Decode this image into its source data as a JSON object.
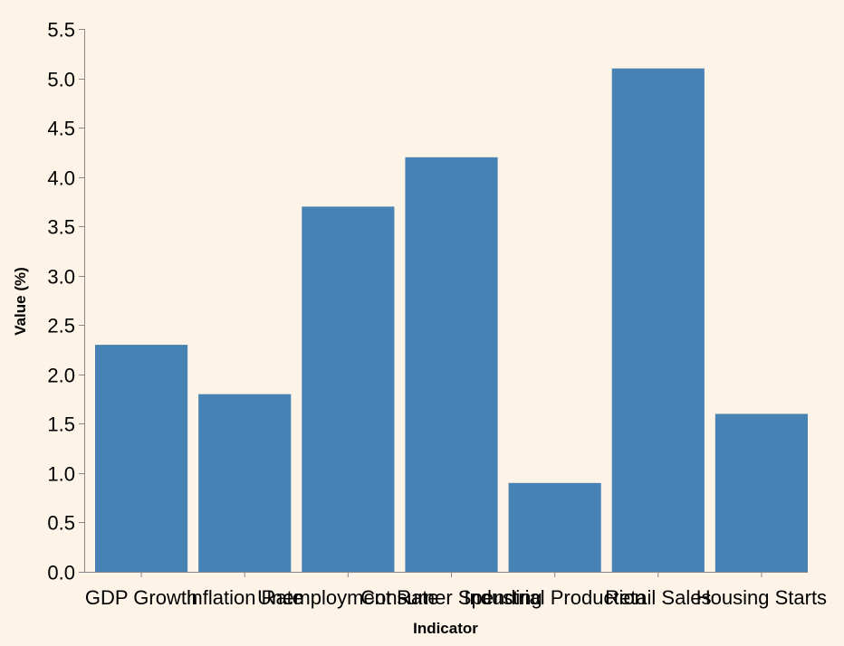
{
  "chart_data": {
    "type": "bar",
    "categories": [
      "GDP Growth",
      "Inflation Rate",
      "Unemployment Rate",
      "Consumer Spending",
      "Industrial Production",
      "Retail Sales",
      "Housing Starts"
    ],
    "values": [
      2.3,
      1.8,
      3.7,
      4.2,
      0.9,
      5.1,
      1.6
    ],
    "xlabel": "Indicator",
    "ylabel": "Value (%)",
    "ylim": [
      0,
      5.5
    ],
    "yticks": [
      "0.0",
      "0.5",
      "1.0",
      "1.5",
      "2.0",
      "2.5",
      "3.0",
      "3.5",
      "4.0",
      "4.5",
      "5.0",
      "5.5"
    ],
    "grid": false,
    "bar_color": "#4682b4",
    "background_color": "#fdf3e6"
  }
}
